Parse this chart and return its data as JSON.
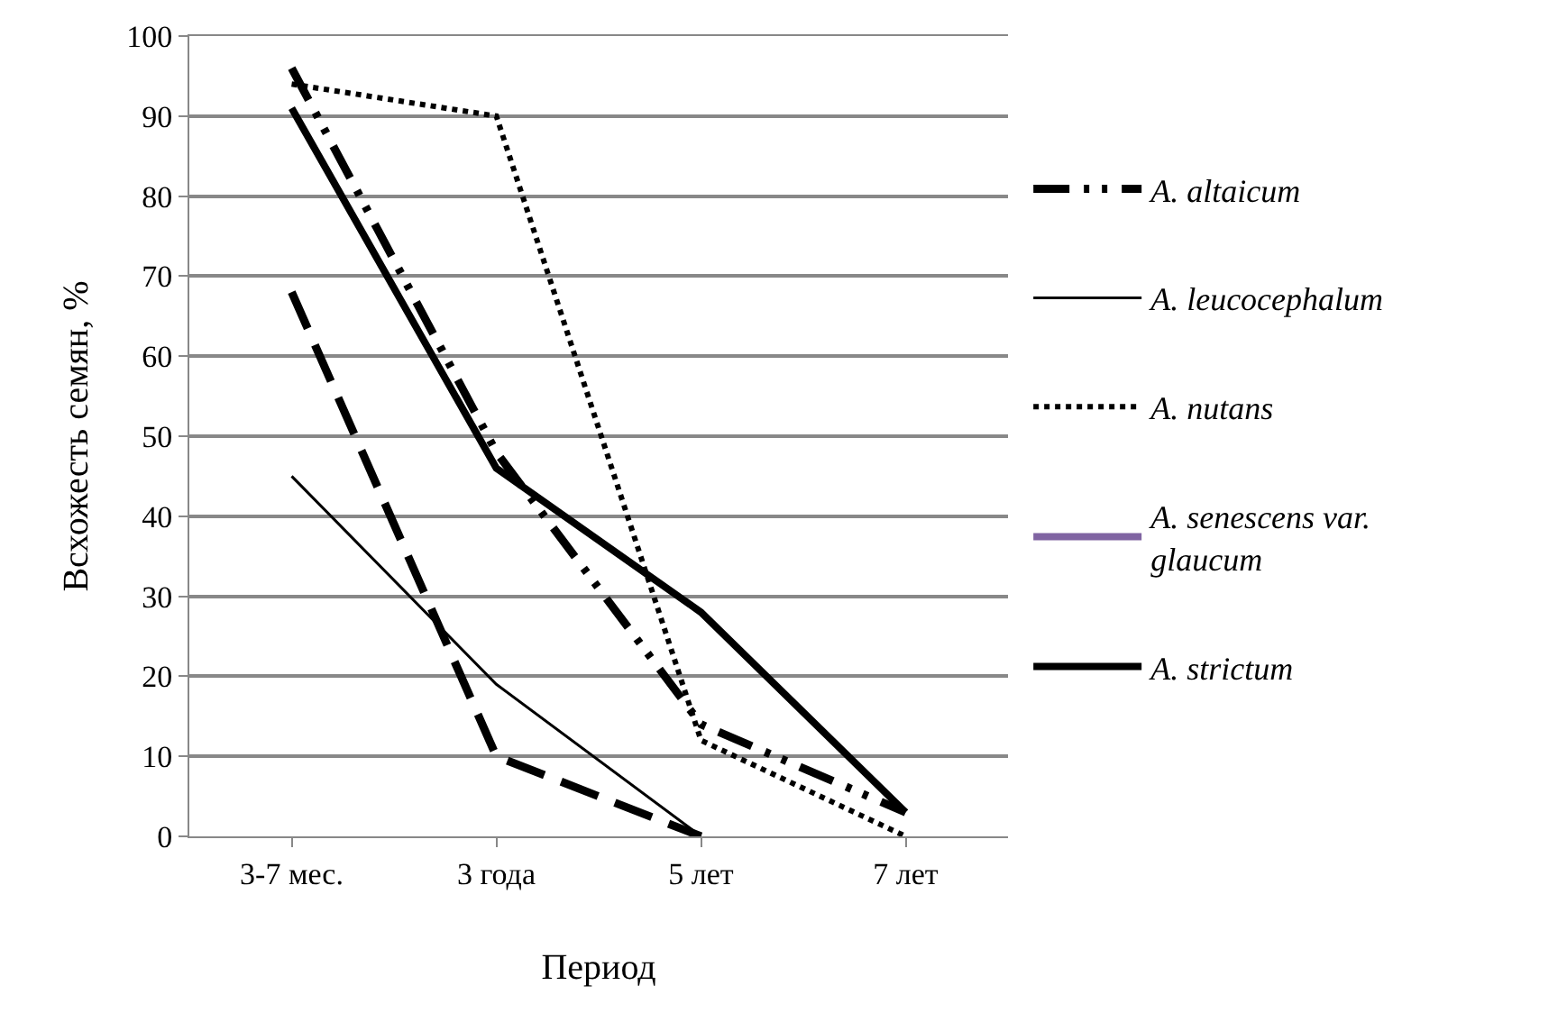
{
  "chart_data": {
    "type": "line",
    "xlabel": "Период",
    "ylabel": "Всхожесть семян, %",
    "categories": [
      "3-7 мес.",
      "3 года",
      "5 лет",
      "7 лет"
    ],
    "series": [
      {
        "name": "A. altaicum",
        "color": "#000000",
        "line_style": "dashed",
        "values": [
          96,
          48,
          14,
          3
        ]
      },
      {
        "name": "A. leucocephalum",
        "color": "#000000",
        "line_style": "solid",
        "values": [
          45,
          19,
          0,
          null
        ]
      },
      {
        "name": "A. nutans",
        "color": "#000000",
        "line_style": "dotted",
        "values": [
          94,
          90,
          12,
          0
        ]
      },
      {
        "name": "A. senescens var. glaucum",
        "color": "#8064a2",
        "line_style": "solid",
        "values": [
          null,
          null,
          null,
          null
        ]
      },
      {
        "name": "A. strictum",
        "color": "#000000",
        "line_style": "solid",
        "values": [
          91,
          46,
          28,
          3
        ]
      },
      {
        "color": "#000000",
        "line_style": "dashed",
        "values": [
          68,
          10,
          0,
          null
        ]
      }
    ],
    "ylim": [
      0,
      100
    ],
    "yticks": [
      0,
      10,
      20,
      30,
      40,
      50,
      60,
      70,
      80,
      90,
      100
    ],
    "grid": "y",
    "legend": "right",
    "marker": "none"
  }
}
